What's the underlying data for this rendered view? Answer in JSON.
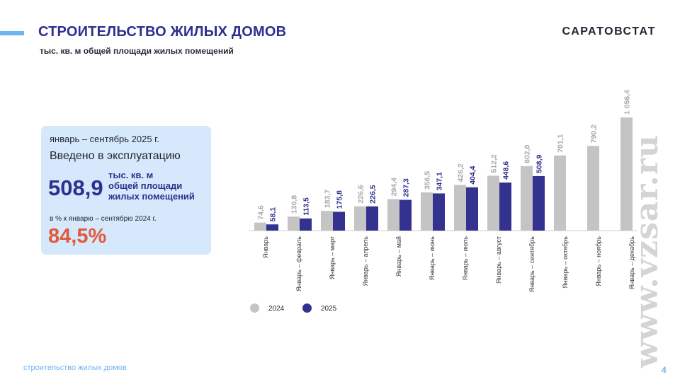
{
  "header": {
    "title": "СТРОИТЕЛЬСТВО ЖИЛЫХ ДОМОВ",
    "subtitle": "тыс. кв. м общей площади жилых помещений",
    "logo": "САРАТОВСТАТ"
  },
  "infobox": {
    "period": "январь – сентябрь 2025 г.",
    "label": "Введено в эксплуатацию",
    "value": "508,9",
    "unit_lines": [
      "тыс. кв. м",
      "общей площади",
      "жилых помещений"
    ],
    "compare_label": "в % к январю – сентябрю 2024 г.",
    "percent": "84,5%"
  },
  "footer": {
    "text": "строительство жилых домов",
    "page": "4"
  },
  "watermark": "www.vzsar.ru",
  "colors": {
    "title": "#2e2f8f",
    "series_2024": "#c4c4c4",
    "series_2025": "#34328f",
    "percent": "#e05a3c",
    "accent": "#6fb3f0",
    "infobox_bg": "#d6e8fb"
  },
  "chart_data": {
    "type": "bar",
    "categories": [
      "Январь",
      "Январь – февраль",
      "Январь – март",
      "Январь – апрель",
      "Январь – май",
      "Январь – июнь",
      "Январь – июль",
      "Январь – август",
      "Январь – сентябрь",
      "Январь – октябрь",
      "Январь – ноябрь",
      "Январь – декабрь"
    ],
    "series": [
      {
        "name": "2024",
        "values": [
          74.6,
          130.8,
          183.7,
          226.6,
          294.4,
          356.5,
          426.2,
          512.2,
          602.0,
          701.1,
          790.2,
          1056.4
        ],
        "labels": [
          "74,6",
          "130,8",
          "183,7",
          "226,6",
          "294,4",
          "356,5",
          "426,2",
          "512,2",
          "602,0",
          "701,1",
          "790,2",
          "1 056,4"
        ]
      },
      {
        "name": "2025",
        "values": [
          58.1,
          113.5,
          175.8,
          226.5,
          287.3,
          347.1,
          404.4,
          448.6,
          508.9,
          null,
          null,
          null
        ],
        "labels": [
          "58,1",
          "113,5",
          "175,8",
          "226,5",
          "287,3",
          "347,1",
          "404,4",
          "448,6",
          "508,9",
          "",
          "",
          ""
        ]
      }
    ],
    "legend_position": "bottom",
    "grid": false
  }
}
